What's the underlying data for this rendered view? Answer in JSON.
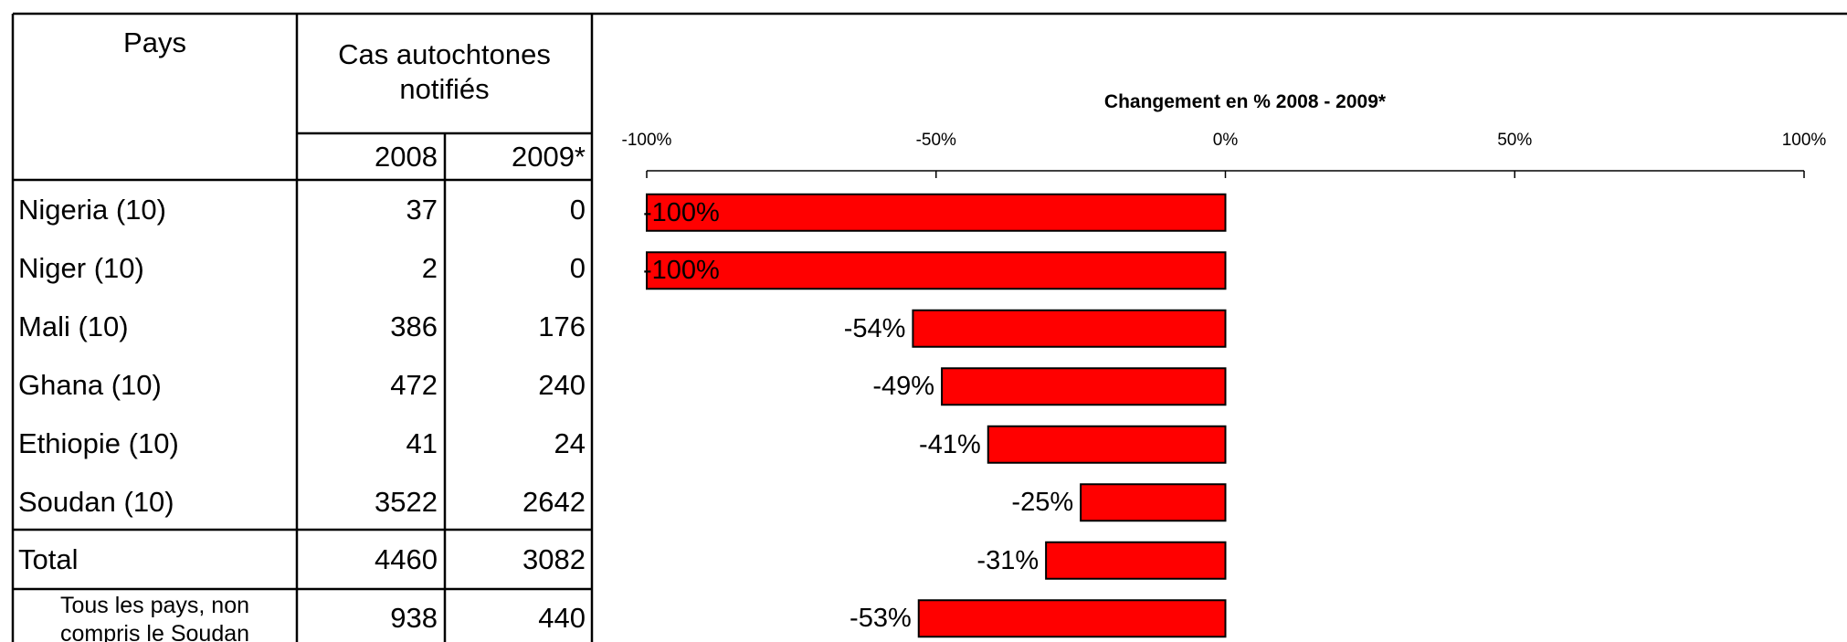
{
  "table": {
    "header": {
      "country": "Pays",
      "cases": "Cas autochtones notifiés",
      "year1": "2008",
      "year2": "2009*"
    },
    "rows": [
      {
        "name": "Nigeria (10)",
        "v2008": "37",
        "v2009": "0"
      },
      {
        "name": "Niger (10)",
        "v2008": "2",
        "v2009": "0"
      },
      {
        "name": "Mali (10)",
        "v2008": "386",
        "v2009": "176"
      },
      {
        "name": "Ghana (10)",
        "v2008": "472",
        "v2009": "240"
      },
      {
        "name": "Ethiopie (10)",
        "v2008": "41",
        "v2009": "24"
      },
      {
        "name": "Soudan (10)",
        "v2008": "3522",
        "v2009": "2642"
      }
    ],
    "total": {
      "name": "Total",
      "v2008": "4460",
      "v2009": "3082"
    },
    "excluding": {
      "line1": "Tous les pays, non",
      "line2": "compris le Soudan",
      "v2008": "938",
      "v2009": "440"
    }
  },
  "chart_data": {
    "type": "bar",
    "orientation": "horizontal",
    "title": "Changement en % 2008 - 2009*",
    "categories": [
      "Nigeria (10)",
      "Niger (10)",
      "Mali (10)",
      "Ghana (10)",
      "Ethiopie (10)",
      "Soudan (10)",
      "Total",
      "Tous les pays, non compris le Soudan"
    ],
    "values": [
      -100,
      -100,
      -54,
      -49,
      -41,
      -25,
      -31,
      -53
    ],
    "data_labels": [
      "-100%",
      "-100%",
      "-54%",
      "-49%",
      "-41%",
      "-25%",
      "-31%",
      "-53%"
    ],
    "xlim": [
      -100,
      100
    ],
    "xticks": [
      -100,
      -50,
      0,
      50,
      100
    ],
    "xtick_labels": [
      "-100%",
      "-50%",
      "0%",
      "50%",
      "100%"
    ],
    "axis_position": "top",
    "bar_color": "#ff0000",
    "bar_edge_color": "#000000",
    "grid": false
  }
}
